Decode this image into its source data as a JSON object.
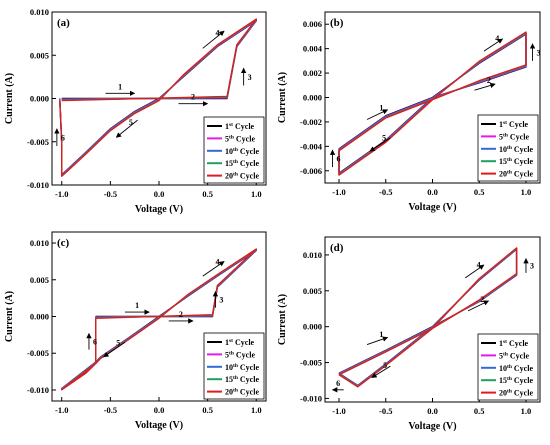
{
  "legend_colors": [
    "#000000",
    "#e619e6",
    "#2f6bd6",
    "#1f9e63",
    "#e01b1b"
  ],
  "chart_data": [
    {
      "panel": "(a)",
      "type": "line",
      "xlabel": "Voltage (V)",
      "ylabel": "Current (A)",
      "xlim": [
        -1.1,
        1.1
      ],
      "ylim": [
        -0.01,
        0.01
      ],
      "xticks": [
        -1.0,
        -0.5,
        0.0,
        0.5,
        1.0
      ],
      "xtick_labels": [
        "-1.0",
        "-0.5",
        "0.0",
        "0.5",
        "1.0"
      ],
      "yticks": [
        -0.01,
        -0.005,
        0.0,
        0.005,
        0.01
      ],
      "ytick_labels": [
        "-0.010",
        "-0.005",
        "0.000",
        "0.005",
        "0.010"
      ],
      "legend": [
        {
          "num": "1",
          "sup": "st",
          "rest": " Cycle"
        },
        {
          "num": "5",
          "sup": "th",
          "rest": " Cycle"
        },
        {
          "num": "10",
          "sup": "th",
          "rest": " Cycle"
        },
        {
          "num": "15",
          "sup": "th",
          "rest": " Cycle"
        },
        {
          "num": "20",
          "sup": "th",
          "rest": " Cycle"
        }
      ],
      "legend_position": "bottom-right",
      "loop": [
        [
          -1.0,
          0.0
        ],
        [
          0.7,
          0.0
        ],
        [
          0.8,
          0.006
        ],
        [
          1.0,
          0.009
        ],
        [
          0.6,
          0.006
        ],
        [
          0.25,
          0.0025
        ],
        [
          0.0,
          0.0
        ],
        [
          -0.25,
          -0.0015
        ],
        [
          -0.5,
          -0.0035
        ],
        [
          -0.75,
          -0.0062
        ],
        [
          -0.95,
          -0.0083
        ],
        [
          -1.0,
          -0.0088
        ],
        [
          -1.0,
          -0.005
        ],
        [
          -1.02,
          0.0
        ]
      ],
      "series_offsets": [
        0.0,
        0.0002,
        0.0004,
        0.0006,
        0.0008
      ],
      "arrows": [
        {
          "label": "1",
          "x": -0.55,
          "y": 0.0006,
          "dx": 0.3,
          "dy": 0
        },
        {
          "label": "2",
          "x": 0.2,
          "y": -0.0006,
          "dx": 0.3,
          "dy": 0
        },
        {
          "label": "3",
          "x": 0.87,
          "y": 0.0015,
          "dx": 0,
          "dy": 0.002
        },
        {
          "label": "4",
          "x": 0.45,
          "y": 0.0058,
          "dx": 0.22,
          "dy": 0.002
        },
        {
          "label": "5",
          "x": -0.22,
          "y": -0.0025,
          "dx": -0.22,
          "dy": -0.002
        },
        {
          "label": "6",
          "x": -1.05,
          "y": -0.0055,
          "dx": 0,
          "dy": 0.002
        }
      ]
    },
    {
      "panel": "(b)",
      "type": "line",
      "xlabel": "Voltage (V)",
      "ylabel": "Current (A)",
      "xlim": [
        -1.15,
        1.15
      ],
      "ylim": [
        -0.007,
        0.007
      ],
      "xticks": [
        -1.0,
        -0.5,
        0.0,
        0.5,
        1.0
      ],
      "xtick_labels": [
        "-1.0",
        "-0.5",
        "0.0",
        "0.5",
        "1.0"
      ],
      "yticks": [
        -0.006,
        -0.004,
        -0.002,
        0.0,
        0.002,
        0.004,
        0.006
      ],
      "ytick_labels": [
        "-0.006",
        "-0.004",
        "-0.002",
        "0.000",
        "0.002",
        "0.004",
        "0.006"
      ],
      "legend": [
        {
          "num": "1",
          "sup": "st",
          "rest": " Cycle"
        },
        {
          "num": "5",
          "sup": "th",
          "rest": " Cycle"
        },
        {
          "num": "10",
          "sup": "th",
          "rest": " Cycle"
        },
        {
          "num": "15",
          "sup": "th",
          "rest": " Cycle"
        },
        {
          "num": "20",
          "sup": "th",
          "rest": " Cycle"
        }
      ],
      "legend_position": "bottom-right",
      "loop": [
        [
          -1.0,
          -0.0042
        ],
        [
          -0.5,
          -0.0015
        ],
        [
          0.0,
          0.0
        ],
        [
          0.5,
          0.0012
        ],
        [
          1.0,
          0.0025
        ],
        [
          1.0,
          0.0052
        ],
        [
          0.5,
          0.0028
        ],
        [
          0.0,
          0.0
        ],
        [
          -0.5,
          -0.0035
        ],
        [
          -1.0,
          -0.0062
        ],
        [
          -1.0,
          -0.0042
        ]
      ],
      "series_offsets": [
        0.0,
        0.00015,
        0.0003,
        0.00045,
        0.0006
      ],
      "arrows": [
        {
          "label": "1",
          "x": -0.7,
          "y": -0.0018,
          "dx": 0.22,
          "dy": 0.0008
        },
        {
          "label": "2",
          "x": 0.45,
          "y": 0.0006,
          "dx": 0.22,
          "dy": 0.0005
        },
        {
          "label": "3",
          "x": 1.07,
          "y": 0.003,
          "dx": 0,
          "dy": 0.0014
        },
        {
          "label": "4",
          "x": 0.55,
          "y": 0.0038,
          "dx": 0.2,
          "dy": 0.001
        },
        {
          "label": "5",
          "x": -0.45,
          "y": -0.0033,
          "dx": -0.22,
          "dy": -0.0011
        },
        {
          "label": "6",
          "x": -1.07,
          "y": -0.0057,
          "dx": 0,
          "dy": 0.0014
        }
      ]
    },
    {
      "panel": "(c)",
      "type": "line",
      "xlabel": "Voltage (V)",
      "ylabel": "Current (A)",
      "xlim": [
        -1.1,
        1.1
      ],
      "ylim": [
        -0.0115,
        0.0115
      ],
      "xticks": [
        -1.0,
        -0.5,
        0.0,
        0.5,
        1.0
      ],
      "xtick_labels": [
        "-1.0",
        "-0.5",
        "0.0",
        "0.5",
        "1.0"
      ],
      "yticks": [
        -0.01,
        -0.005,
        0.0,
        0.005,
        0.01
      ],
      "ytick_labels": [
        "-0.010",
        "-0.005",
        "0.000",
        "0.005",
        "0.010"
      ],
      "legend": [
        {
          "num": "1",
          "sup": "st",
          "rest": " Cycle"
        },
        {
          "num": "5",
          "sup": "th",
          "rest": " Cycle"
        },
        {
          "num": "10",
          "sup": "th",
          "rest": " Cycle"
        },
        {
          "num": "15",
          "sup": "th",
          "rest": " Cycle"
        },
        {
          "num": "20",
          "sup": "th",
          "rest": " Cycle"
        }
      ],
      "legend_position": "bottom-right",
      "loop": [
        [
          -0.65,
          0.0
        ],
        [
          0.55,
          0.0
        ],
        [
          0.6,
          0.004
        ],
        [
          1.0,
          0.009
        ],
        [
          0.6,
          0.0055
        ],
        [
          0.3,
          0.0028
        ],
        [
          0.0,
          0.0
        ],
        [
          -0.3,
          -0.0028
        ],
        [
          -0.6,
          -0.0055
        ],
        [
          -0.65,
          -0.0062
        ],
        [
          -0.75,
          -0.0075
        ],
        [
          -1.0,
          -0.0098
        ],
        [
          -0.65,
          -0.0062
        ],
        [
          -0.65,
          0.0
        ]
      ],
      "series_offsets": [
        0.0,
        0.0002,
        0.0004,
        0.0006,
        0.0008
      ],
      "arrows": [
        {
          "label": "1",
          "x": -0.35,
          "y": 0.0006,
          "dx": 0.25,
          "dy": 0
        },
        {
          "label": "2",
          "x": 0.1,
          "y": -0.0006,
          "dx": 0.25,
          "dy": 0
        },
        {
          "label": "3",
          "x": 0.58,
          "y": 0.0012,
          "dx": 0,
          "dy": 0.0022
        },
        {
          "label": "4",
          "x": 0.45,
          "y": 0.0055,
          "dx": 0.22,
          "dy": 0.002
        },
        {
          "label": "5",
          "x": -0.35,
          "y": -0.0035,
          "dx": -0.22,
          "dy": -0.002
        },
        {
          "label": "6",
          "x": -0.72,
          "y": -0.0045,
          "dx": 0,
          "dy": 0.0022
        }
      ]
    },
    {
      "panel": "(d)",
      "type": "line",
      "xlabel": "Voltage (V)",
      "ylabel": "Current (A)",
      "xlim": [
        -1.15,
        1.15
      ],
      "ylim": [
        -0.0105,
        0.0125
      ],
      "xticks": [
        -1.0,
        -0.5,
        0.0,
        0.5,
        1.0
      ],
      "xtick_labels": [
        "-1.0",
        "-0.5",
        "0.0",
        "0.5",
        "1.0"
      ],
      "yticks": [
        -0.01,
        -0.005,
        0.0,
        0.005,
        0.01
      ],
      "ytick_labels": [
        "-0.010",
        "-0.005",
        "0.000",
        "0.005",
        "0.010"
      ],
      "legend": [
        {
          "num": "1",
          "sup": "st",
          "rest": " Cycle"
        },
        {
          "num": "5",
          "sup": "th",
          "rest": " Cycle"
        },
        {
          "num": "10",
          "sup": "th",
          "rest": " Cycle"
        },
        {
          "num": "15",
          "sup": "th",
          "rest": " Cycle"
        },
        {
          "num": "20",
          "sup": "th",
          "rest": " Cycle"
        }
      ],
      "legend_position": "bottom-right",
      "loop": [
        [
          -1.0,
          -0.0065
        ],
        [
          -0.5,
          -0.0033
        ],
        [
          0.0,
          0.0
        ],
        [
          0.5,
          0.0035
        ],
        [
          0.9,
          0.0072
        ],
        [
          0.9,
          0.0108
        ],
        [
          0.5,
          0.0065
        ],
        [
          0.0,
          0.0
        ],
        [
          -0.5,
          -0.0052
        ],
        [
          -0.8,
          -0.0082
        ],
        [
          -1.0,
          -0.0065
        ]
      ],
      "series_offsets": [
        0.0,
        0.0002,
        0.0004,
        0.0006,
        0.0008
      ],
      "arrows": [
        {
          "label": "1",
          "x": -0.7,
          "y": -0.0025,
          "dx": 0.22,
          "dy": 0.001
        },
        {
          "label": "2",
          "x": 0.38,
          "y": 0.0022,
          "dx": 0.22,
          "dy": 0.0014
        },
        {
          "label": "3",
          "x": 1.0,
          "y": 0.0075,
          "dx": 0,
          "dy": 0.002
        },
        {
          "label": "4",
          "x": 0.35,
          "y": 0.0068,
          "dx": 0.2,
          "dy": 0.0018
        },
        {
          "label": "5",
          "x": -0.45,
          "y": -0.0055,
          "dx": -0.2,
          "dy": -0.0016
        },
        {
          "label": "6",
          "x": -0.95,
          "y": -0.0088,
          "dx": -0.12,
          "dy": 0
        }
      ]
    }
  ]
}
